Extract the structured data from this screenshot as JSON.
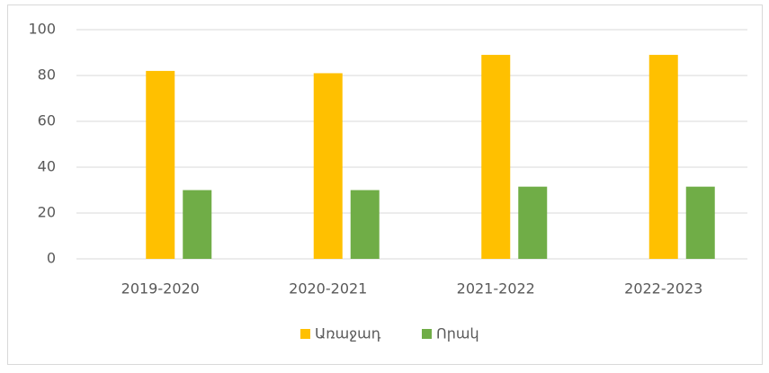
{
  "chart_data": {
    "type": "bar",
    "categories": [
      "2019-2020",
      "2020-2021",
      "2021-2022",
      "2022-2023"
    ],
    "series": [
      {
        "name": "Առաջադ",
        "color": "#ffc000",
        "values": [
          82,
          81,
          89,
          89
        ]
      },
      {
        "name": "Որակ",
        "color": "#70ad47",
        "values": [
          30,
          30,
          31.5,
          31.5
        ]
      }
    ],
    "ylim": [
      0,
      100
    ],
    "yticks": [
      0,
      20,
      40,
      60,
      80,
      100
    ],
    "grid": true,
    "legend": "bottom"
  }
}
